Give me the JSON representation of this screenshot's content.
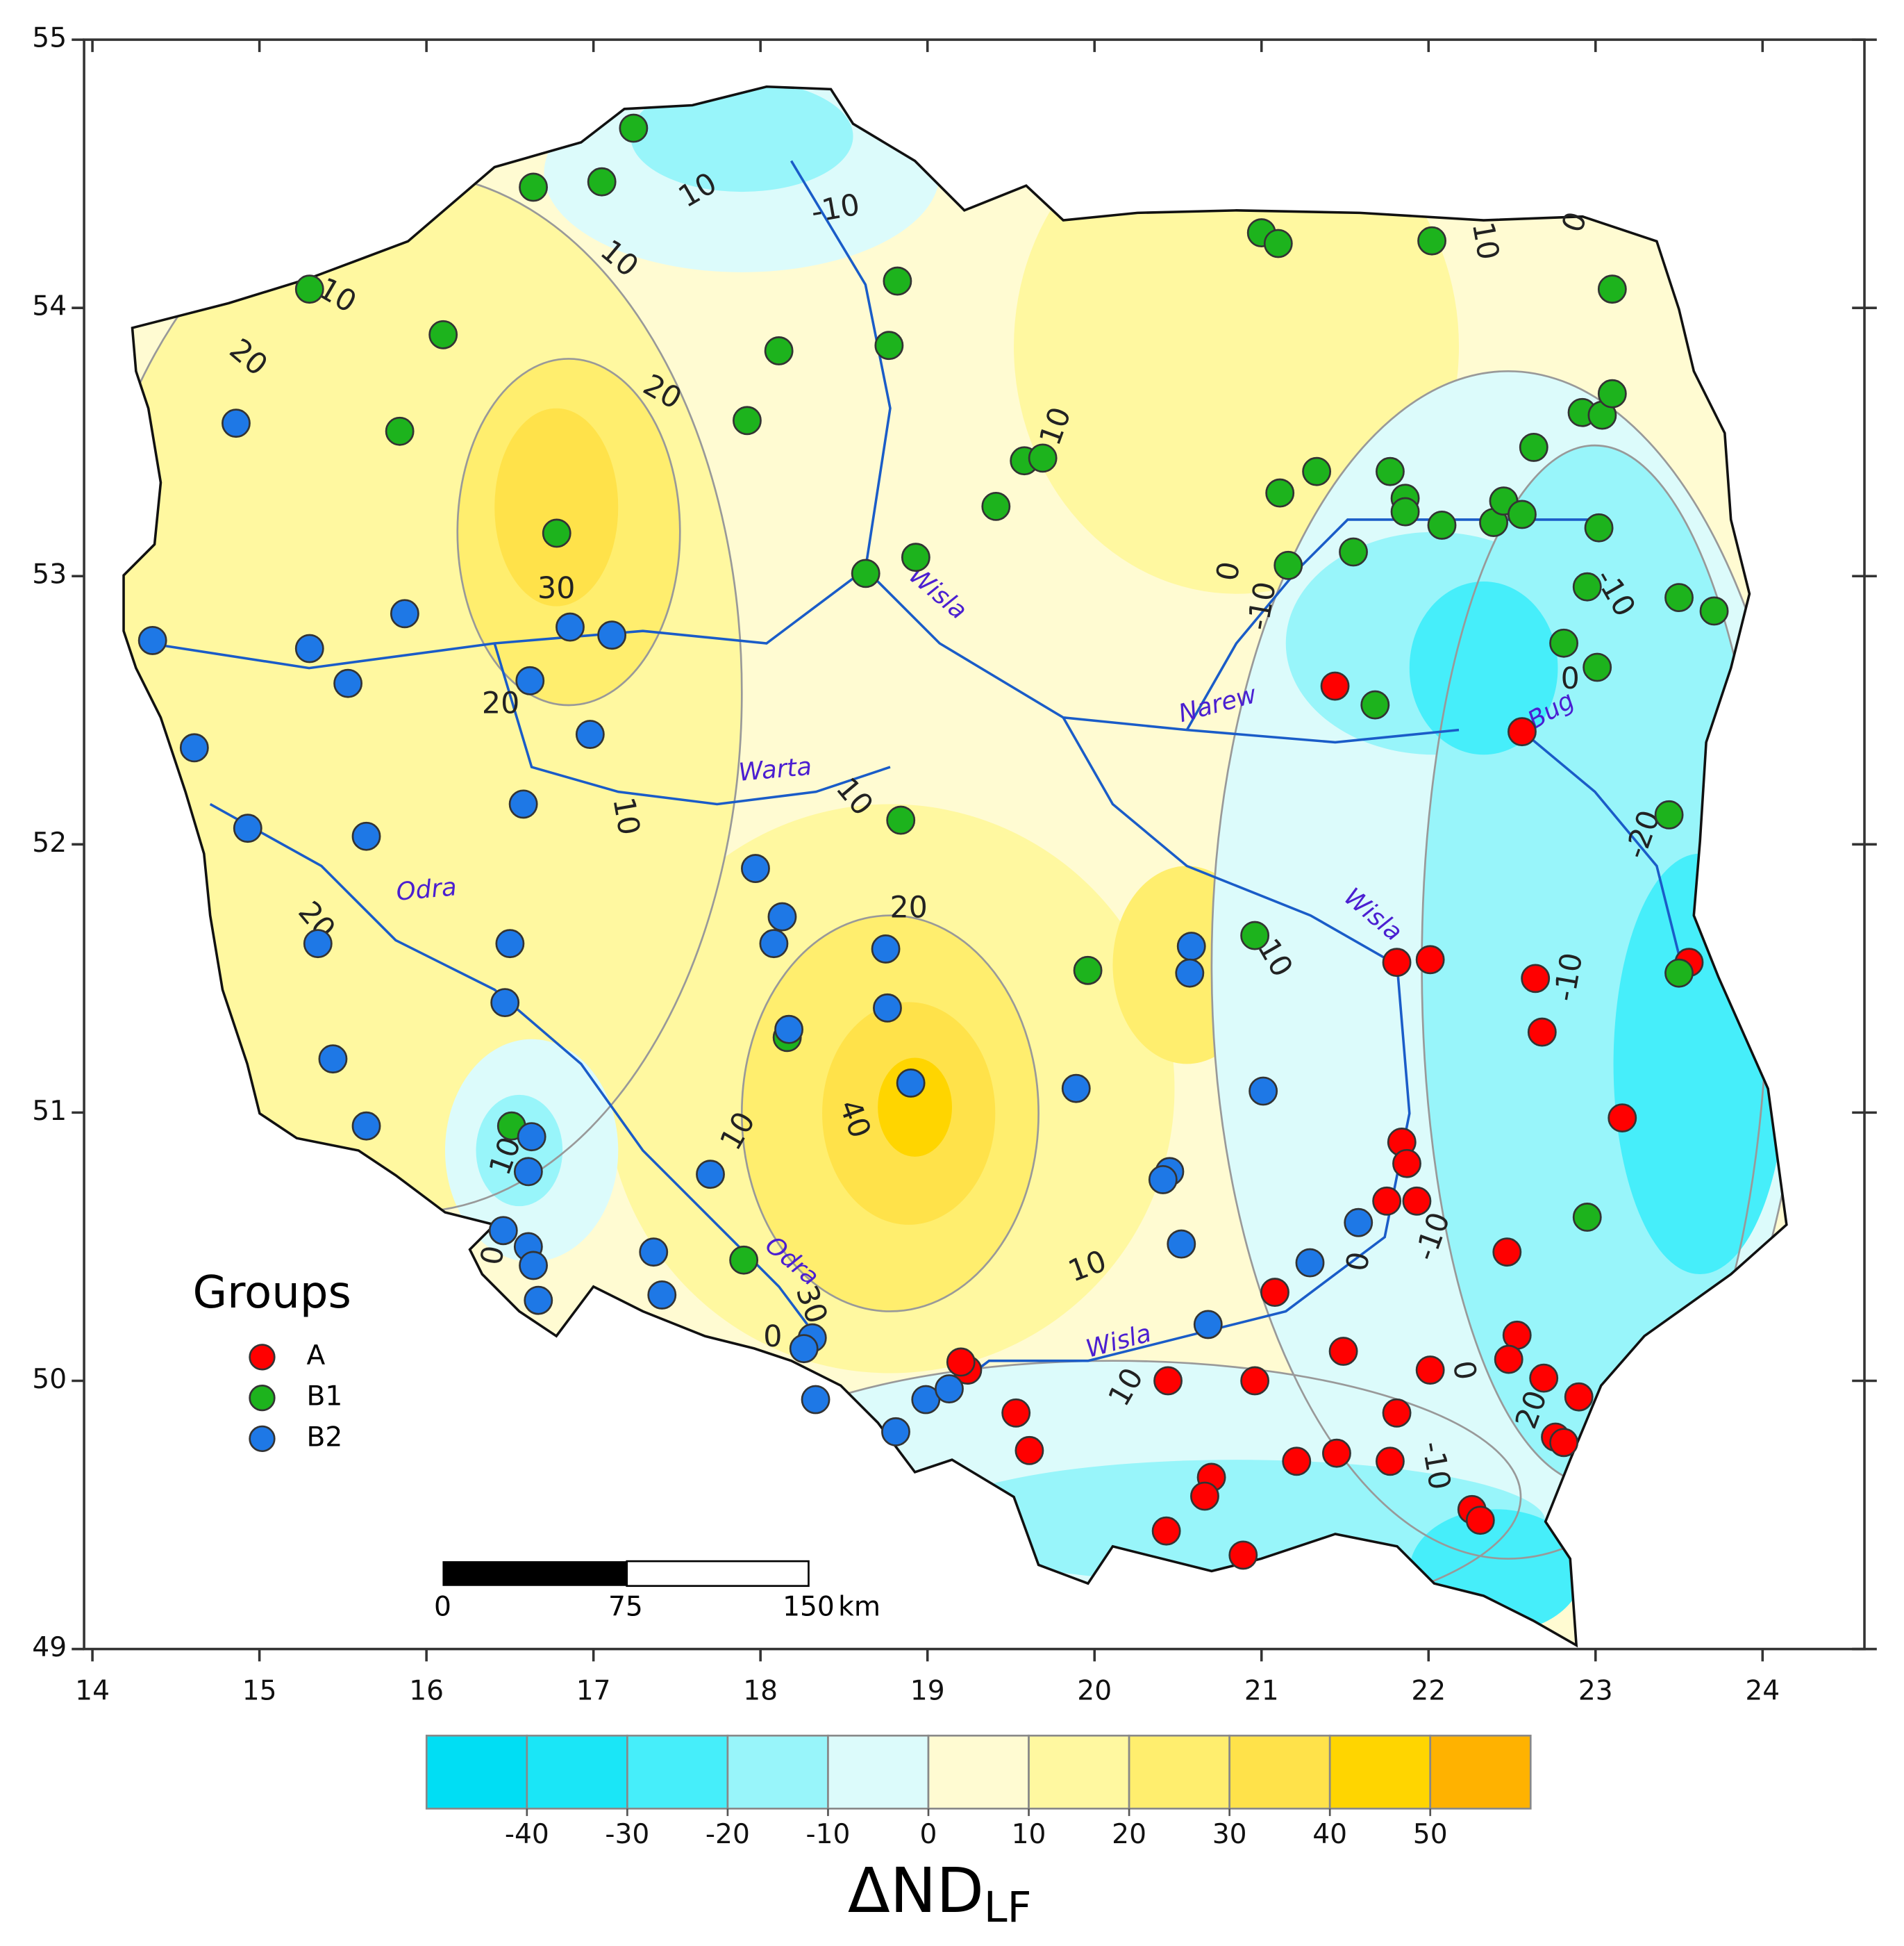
{
  "chart_data": {
    "type": "scatter",
    "xlim": [
      13.95,
      24.61
    ],
    "ylim": [
      49,
      55
    ],
    "xticks": [
      14,
      15,
      16,
      17,
      18,
      19,
      20,
      21,
      22,
      23,
      24
    ],
    "yticks": [
      49,
      50,
      51,
      52,
      53,
      54,
      55
    ],
    "legend_title": "Groups",
    "series": [
      {
        "name": "A",
        "color": "#ff0000",
        "x": [
          21.44,
          22.56,
          21.81,
          22.01,
          22.64,
          22.68,
          23.16,
          23.56,
          21.84,
          21.87,
          21.75,
          21.93,
          22.47,
          21.08,
          22.53,
          22.48,
          22.69,
          22.9,
          22.01,
          21.49,
          21.81,
          20.96,
          20.44,
          19.24,
          19.2,
          19.53,
          19.61,
          21.21,
          21.45,
          21.77,
          22.76,
          22.81,
          20.7,
          20.66,
          20.43,
          20.89,
          22.26,
          22.31
        ],
        "y": [
          52.59,
          52.42,
          51.56,
          51.57,
          51.5,
          51.3,
          50.98,
          51.56,
          50.89,
          50.81,
          50.67,
          50.67,
          50.48,
          50.33,
          50.17,
          50.08,
          50.01,
          49.94,
          50.04,
          50.11,
          49.88,
          50.0,
          50.0,
          50.04,
          50.07,
          49.88,
          49.74,
          49.7,
          49.73,
          49.7,
          49.79,
          49.77,
          49.64,
          49.57,
          49.44,
          49.35,
          49.52,
          49.48
        ]
      },
      {
        "name": "B1",
        "color": "#1db31d",
        "x": [
          17.24,
          16.64,
          17.05,
          15.3,
          16.1,
          15.84,
          16.78,
          17.92,
          18.11,
          18.77,
          18.82,
          18.63,
          18.93,
          19.41,
          19.58,
          19.69,
          21.0,
          21.1,
          22.02,
          23.1,
          21.11,
          21.33,
          21.16,
          21.55,
          21.77,
          21.86,
          21.86,
          22.08,
          22.39,
          22.45,
          22.56,
          22.63,
          22.92,
          23.04,
          23.1,
          23.02,
          22.95,
          22.81,
          23.01,
          23.5,
          23.71,
          21.68,
          18.84,
          23.44,
          23.5,
          20.96,
          19.96,
          18.16,
          16.51,
          22.95,
          17.9
        ],
        "y": [
          54.67,
          54.45,
          54.47,
          54.07,
          53.9,
          53.54,
          53.16,
          53.58,
          53.84,
          53.86,
          54.1,
          53.01,
          53.07,
          53.26,
          53.43,
          53.44,
          54.28,
          54.24,
          54.25,
          54.07,
          53.31,
          53.39,
          53.04,
          53.09,
          53.39,
          53.29,
          53.24,
          53.19,
          53.2,
          53.28,
          53.23,
          53.48,
          53.61,
          53.6,
          53.68,
          53.18,
          52.96,
          52.75,
          52.66,
          52.92,
          52.87,
          52.52,
          52.09,
          52.11,
          51.52,
          51.66,
          51.53,
          51.28,
          50.95,
          50.61,
          50.45
        ]
      },
      {
        "name": "B2",
        "color": "#1e78e6",
        "x": [
          14.36,
          14.86,
          14.61,
          14.93,
          15.3,
          15.53,
          15.87,
          16.86,
          17.11,
          16.62,
          16.98,
          16.58,
          15.64,
          15.35,
          16.5,
          16.47,
          15.44,
          15.64,
          16.63,
          16.61,
          16.46,
          16.61,
          16.64,
          16.67,
          17.36,
          17.41,
          17.7,
          17.97,
          18.13,
          18.08,
          18.17,
          18.75,
          18.76,
          18.9,
          19.89,
          20.58,
          20.57,
          21.01,
          20.45,
          20.41,
          20.52,
          21.29,
          21.58,
          20.68,
          18.31,
          18.26,
          18.33,
          18.99,
          19.13,
          18.81
        ],
        "y": [
          52.76,
          53.57,
          52.36,
          52.06,
          52.73,
          52.6,
          52.86,
          52.81,
          52.78,
          52.61,
          52.41,
          52.15,
          52.03,
          51.63,
          51.63,
          51.41,
          51.2,
          50.95,
          50.91,
          50.78,
          50.56,
          50.5,
          50.43,
          50.3,
          50.48,
          50.32,
          50.77,
          51.91,
          51.73,
          51.63,
          51.31,
          51.61,
          51.39,
          51.11,
          51.09,
          51.62,
          51.52,
          51.08,
          50.78,
          50.75,
          50.51,
          50.44,
          50.59,
          50.21,
          50.16,
          50.12,
          49.93,
          49.93,
          49.97,
          49.81
        ]
      }
    ],
    "contour_labels": [
      10,
      -10,
      10,
      10,
      20,
      20,
      30,
      20,
      10,
      10,
      20,
      20,
      40,
      10,
      10,
      30,
      0,
      10,
      10,
      0,
      -10,
      0,
      -10,
      20,
      -10,
      -20,
      -10,
      0,
      0,
      -10,
      10,
      10,
      10,
      0,
      0
    ],
    "river_labels": [
      "Wisla",
      "Narew",
      "Bug",
      "Warta",
      "Odra",
      "Odra",
      "Wisla",
      "Wisla"
    ],
    "scale_bar": {
      "ticks": [
        0,
        75,
        150
      ],
      "unit": "km"
    },
    "colorbar": {
      "lim": [
        -50,
        60
      ],
      "ticks": [
        -40,
        -30,
        -20,
        -10,
        0,
        10,
        20,
        30,
        40,
        50
      ],
      "colors": [
        "#00def4",
        "#1ae6f7",
        "#46eefa",
        "#98f5fa",
        "#dcfbfb",
        "#fffbd2",
        "#fff8a0",
        "#ffee6e",
        "#ffe24a",
        "#ffd500",
        "#ffb200"
      ],
      "label": "ΔND",
      "label_sub": "LF"
    }
  }
}
